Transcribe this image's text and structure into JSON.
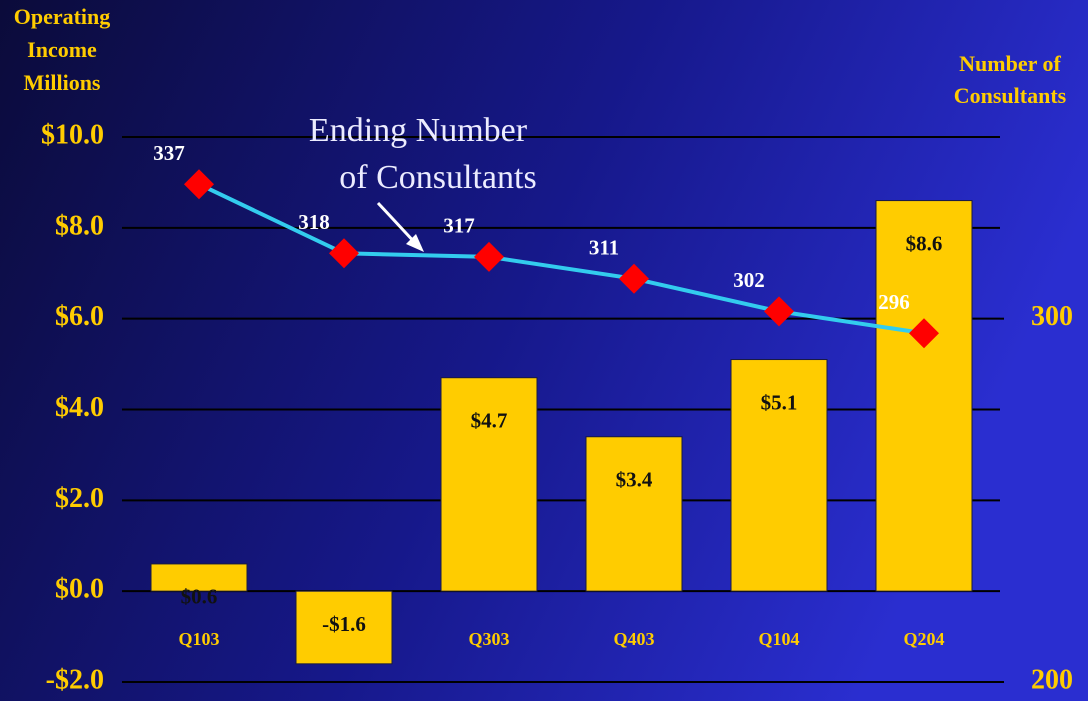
{
  "chart_data": {
    "type": "bar",
    "y_label": [
      "Operating",
      "Income",
      "Millions"
    ],
    "y2_label": [
      "Number of",
      "Consultants"
    ],
    "annotation": [
      "Ending Number",
      "of Consultants"
    ],
    "categories": [
      "Q103",
      "Q203",
      "Q303",
      "Q403",
      "Q104",
      "Q204"
    ],
    "series": [
      {
        "type": "bar",
        "color": "#ffcc00",
        "values": [
          0.6,
          -1.6,
          4.7,
          3.4,
          5.1,
          8.6
        ],
        "value_labels": [
          "$0.6",
          "-$1.6",
          "$4.7",
          "$3.4",
          "$5.1",
          "$8.6"
        ]
      },
      {
        "type": "line",
        "axis": "y2",
        "color": "#33ccee",
        "marker_color": "#ff0000",
        "values": [
          337,
          318,
          317,
          311,
          302,
          296
        ]
      }
    ],
    "ylim": [
      -2,
      10
    ],
    "yticks": [
      {
        "value": -2,
        "label": "-$2.0"
      },
      {
        "value": 0,
        "label": "$0.0"
      },
      {
        "value": 2,
        "label": "$2.0"
      },
      {
        "value": 4,
        "label": "$4.0"
      },
      {
        "value": 6,
        "label": "$6.0"
      },
      {
        "value": 8,
        "label": "$8.0"
      },
      {
        "value": 10,
        "label": "$10.0"
      }
    ],
    "y2lim": [
      200,
      350
    ],
    "y2ticks": [
      200,
      300
    ],
    "grid": true
  }
}
